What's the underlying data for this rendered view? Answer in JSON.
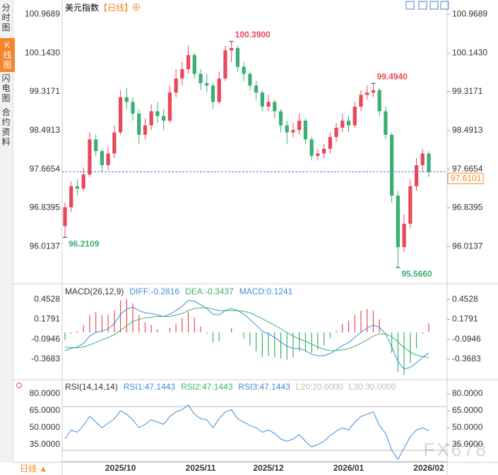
{
  "sidebar": {
    "tabs": [
      "分时图",
      "K线图",
      "闪电图",
      "合约资料"
    ],
    "period": "日线 ▲"
  },
  "watermark": "FX678",
  "chart_data": [
    {
      "type": "candlestick",
      "title": "美元指数",
      "subtitle": "【日线】",
      "up_color": "#e8485a",
      "down_color": "#3aae74",
      "ylim": [
        95.25,
        101.2
      ],
      "yticks": [
        100.9689,
        {
          "value": 100.143,
          "label": "100.1430"
        },
        99.3171,
        98.4913,
        97.6654,
        96.8395,
        96.0137
      ],
      "last_price": 97.6101,
      "annotations": [
        {
          "value": 100.39,
          "label": "100.3900"
        },
        {
          "value": 99.494,
          "label": "99.4940"
        },
        {
          "value": 96.2109,
          "label": "96.2109"
        },
        {
          "value": 95.566,
          "label": "95.5660"
        }
      ],
      "categories": [
        null,
        null,
        null,
        null,
        null,
        null,
        null,
        null,
        null,
        "2025/10",
        null,
        null,
        null,
        null,
        null,
        null,
        null,
        null,
        null,
        null,
        null,
        null,
        "2025/11",
        null,
        null,
        null,
        null,
        null,
        null,
        null,
        null,
        null,
        null,
        "2025/12",
        null,
        null,
        null,
        null,
        null,
        null,
        null,
        null,
        null,
        null,
        null,
        null,
        "2026/01",
        null,
        null,
        null,
        null,
        null,
        null,
        null,
        null,
        null,
        null,
        null,
        null,
        "2026/02"
      ],
      "candles": [
        [
          96.45,
          96.95,
          96.2109,
          96.85
        ],
        [
          96.85,
          97.4,
          96.75,
          97.3
        ],
        [
          97.3,
          97.45,
          97.1,
          97.25
        ],
        [
          97.25,
          97.7,
          97.2,
          97.55
        ],
        [
          97.55,
          98.45,
          97.5,
          98.3
        ],
        [
          98.3,
          98.4,
          97.95,
          98.05
        ],
        [
          98.05,
          98.1,
          97.6,
          97.75
        ],
        [
          97.75,
          98.15,
          97.65,
          98.0
        ],
        [
          98.0,
          98.6,
          97.9,
          98.45
        ],
        [
          98.45,
          99.35,
          98.4,
          99.2
        ],
        [
          99.2,
          99.4,
          98.95,
          99.1
        ],
        [
          99.1,
          99.2,
          98.7,
          98.85
        ],
        [
          98.85,
          98.95,
          98.2,
          98.4
        ],
        [
          98.4,
          98.75,
          98.3,
          98.6
        ],
        [
          98.6,
          99.05,
          98.5,
          98.9
        ],
        [
          98.9,
          99.1,
          98.65,
          98.8
        ],
        [
          98.8,
          98.95,
          98.5,
          98.7
        ],
        [
          98.7,
          99.45,
          98.65,
          99.3
        ],
        [
          99.3,
          99.8,
          99.2,
          99.6
        ],
        [
          99.6,
          99.95,
          99.45,
          99.8
        ],
        [
          99.8,
          100.3,
          99.7,
          100.1
        ],
        [
          100.1,
          100.15,
          99.6,
          99.7
        ],
        [
          99.7,
          99.8,
          99.35,
          99.5
        ],
        [
          99.5,
          99.7,
          99.3,
          99.45
        ],
        [
          99.45,
          99.5,
          98.95,
          99.1
        ],
        [
          99.1,
          99.75,
          99.05,
          99.6
        ],
        [
          99.6,
          100.3,
          99.55,
          100.2
        ],
        [
          100.2,
          100.39,
          99.95,
          100.25
        ],
        [
          100.25,
          100.3,
          99.75,
          99.85
        ],
        [
          99.85,
          99.95,
          99.55,
          99.7
        ],
        [
          99.7,
          99.75,
          99.35,
          99.45
        ],
        [
          99.45,
          99.55,
          99.15,
          99.3
        ],
        [
          99.3,
          99.35,
          98.9,
          99.0
        ],
        [
          99.0,
          99.25,
          98.9,
          99.1
        ],
        [
          99.1,
          99.15,
          98.75,
          98.9
        ],
        [
          98.9,
          98.95,
          98.45,
          98.6
        ],
        [
          98.6,
          98.7,
          98.2,
          98.45
        ],
        [
          98.45,
          98.65,
          98.35,
          98.5
        ],
        [
          98.5,
          98.85,
          98.4,
          98.7
        ],
        [
          98.7,
          98.75,
          98.2,
          98.3
        ],
        [
          98.3,
          98.35,
          97.85,
          97.95
        ],
        [
          97.95,
          98.1,
          97.85,
          98.0
        ],
        [
          98.0,
          98.2,
          97.9,
          98.1
        ],
        [
          98.1,
          98.45,
          98.0,
          98.35
        ],
        [
          98.35,
          98.65,
          98.25,
          98.55
        ],
        [
          98.55,
          98.85,
          98.45,
          98.7
        ],
        [
          98.7,
          98.8,
          98.45,
          98.6
        ],
        [
          98.6,
          99.1,
          98.55,
          99.0
        ],
        [
          99.0,
          99.35,
          98.9,
          99.25
        ],
        [
          99.25,
          99.45,
          99.15,
          99.3
        ],
        [
          99.3,
          99.494,
          99.2,
          99.35
        ],
        [
          99.35,
          99.4,
          98.8,
          98.9
        ],
        [
          98.9,
          99.0,
          98.3,
          98.4
        ],
        [
          98.4,
          98.45,
          96.95,
          97.1
        ],
        [
          97.1,
          97.2,
          95.566,
          96.0
        ],
        [
          96.0,
          96.7,
          95.9,
          96.5
        ],
        [
          96.5,
          97.45,
          96.4,
          97.3
        ],
        [
          97.3,
          97.9,
          97.2,
          97.75
        ],
        [
          97.75,
          98.1,
          97.6,
          98.0
        ],
        [
          98.0,
          98.05,
          97.5,
          97.61
        ]
      ]
    },
    {
      "type": "macd",
      "legend": [
        "MACD(26,12,9)",
        "DIFF:-0.2816",
        "DEA:-0.3437",
        "MACD:0.1241"
      ],
      "ylim": [
        -0.64,
        0.64
      ],
      "yticks": [
        0.4528,
        0.1791,
        -0.0946,
        -0.3683
      ],
      "up_color": "#e8485a",
      "down_color": "#3aae74",
      "series": [
        {
          "color": "#3d8bd8",
          "values": [
            -0.25,
            -0.22,
            -0.2,
            -0.15,
            -0.05,
            0.0,
            0.02,
            0.05,
            0.12,
            0.25,
            0.32,
            0.35,
            0.3,
            0.27,
            0.26,
            0.24,
            0.22,
            0.25,
            0.3,
            0.36,
            0.44,
            0.43,
            0.38,
            0.33,
            0.25,
            0.24,
            0.3,
            0.33,
            0.3,
            0.25,
            0.18,
            0.1,
            0.02,
            -0.02,
            -0.07,
            -0.13,
            -0.19,
            -0.22,
            -0.22,
            -0.25,
            -0.3,
            -0.32,
            -0.32,
            -0.29,
            -0.24,
            -0.18,
            -0.14,
            -0.07,
            0.0,
            0.06,
            0.1,
            0.07,
            -0.02,
            -0.2,
            -0.4,
            -0.5,
            -0.48,
            -0.42,
            -0.34,
            -0.2816
          ]
        },
        {
          "color": "#35b26a",
          "values": [
            -0.2,
            -0.21,
            -0.21,
            -0.2,
            -0.17,
            -0.14,
            -0.1,
            -0.07,
            -0.03,
            0.03,
            0.09,
            0.15,
            0.18,
            0.2,
            0.21,
            0.22,
            0.22,
            0.22,
            0.24,
            0.26,
            0.3,
            0.33,
            0.34,
            0.34,
            0.32,
            0.3,
            0.3,
            0.3,
            0.3,
            0.29,
            0.27,
            0.23,
            0.19,
            0.14,
            0.1,
            0.05,
            0.0,
            -0.05,
            -0.09,
            -0.12,
            -0.16,
            -0.2,
            -0.23,
            -0.25,
            -0.25,
            -0.24,
            -0.22,
            -0.19,
            -0.15,
            -0.1,
            -0.05,
            -0.02,
            -0.02,
            -0.06,
            -0.13,
            -0.21,
            -0.27,
            -0.31,
            -0.33,
            -0.3437
          ]
        }
      ],
      "histogram": [
        -0.1,
        -0.02,
        0.02,
        0.1,
        0.24,
        0.28,
        0.24,
        0.24,
        0.3,
        0.44,
        0.46,
        0.4,
        0.24,
        0.14,
        0.1,
        0.04,
        0.0,
        0.06,
        0.12,
        0.2,
        0.28,
        0.2,
        0.08,
        -0.02,
        -0.14,
        -0.12,
        0.0,
        0.06,
        0.0,
        -0.08,
        -0.18,
        -0.26,
        -0.34,
        -0.32,
        -0.34,
        -0.36,
        -0.38,
        -0.34,
        -0.26,
        -0.26,
        -0.28,
        -0.24,
        -0.18,
        -0.08,
        0.02,
        0.12,
        0.16,
        0.24,
        0.3,
        0.32,
        0.3,
        0.18,
        0.0,
        -0.28,
        -0.54,
        -0.58,
        -0.42,
        -0.22,
        -0.02,
        0.1241
      ]
    },
    {
      "type": "line",
      "legend": [
        "RSI(14,14,14)",
        "RSI1:47.1443",
        "RSI2:47.1443",
        "RSI3:47.1443",
        "L20:20.0000",
        "L30:30.0000"
      ],
      "ylim": [
        19.4,
        91.25
      ],
      "yticks": [
        {
          "value": 80,
          "label": "80.0000"
        },
        {
          "value": 65,
          "label": "65.0000"
        },
        {
          "value": 50,
          "label": "50.0000"
        },
        {
          "value": 35,
          "label": "35.0000"
        }
      ],
      "levels": [
        20,
        30
      ],
      "series": [
        {
          "color": "#3d8bd8",
          "values": [
            40,
            48,
            46,
            52,
            60,
            55,
            50,
            54,
            58,
            65,
            62,
            57,
            50,
            53,
            57,
            55,
            53,
            60,
            64,
            66,
            70,
            62,
            58,
            57,
            50,
            58,
            64,
            66,
            58,
            55,
            52,
            50,
            46,
            48,
            45,
            40,
            38,
            40,
            44,
            38,
            33,
            35,
            38,
            43,
            47,
            50,
            48,
            55,
            60,
            62,
            64,
            52,
            45,
            30,
            22,
            32,
            42,
            48,
            50,
            47.1443
          ]
        }
      ]
    }
  ]
}
